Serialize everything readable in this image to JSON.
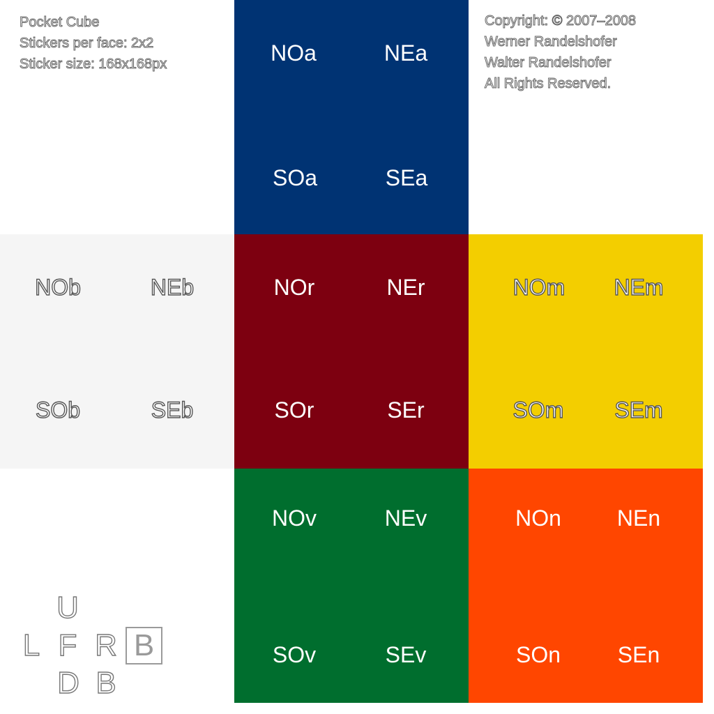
{
  "info": {
    "lines": [
      "Pocket Cube",
      "Stickers per face: 2x2",
      "Sticker size: 168x168px"
    ]
  },
  "copyright": {
    "lines": [
      "Copyright: © 2007–2008",
      "Werner Randelshofer",
      "Walter Randelshofer",
      "All Rights Reserved."
    ]
  },
  "faces": {
    "up": {
      "color": "#003373",
      "stickers": [
        "NOa",
        "NEa",
        "SOa",
        "SEa"
      ]
    },
    "left": {
      "color": "#f5f5f5",
      "stickers": [
        "NOb",
        "NEb",
        "SOb",
        "SEb"
      ]
    },
    "front": {
      "color": "#7d0010",
      "stickers": [
        "NOr",
        "NEr",
        "SOr",
        "SEr"
      ]
    },
    "right": {
      "color": "#f3ce00",
      "stickers": [
        "NOm",
        "NEm",
        "SOm",
        "SEm"
      ]
    },
    "down": {
      "color": "#006e2e",
      "stickers": [
        "NOv",
        "NEv",
        "SOv",
        "SEv"
      ]
    },
    "back": {
      "color": "#ff4600",
      "stickers": [
        "NOn",
        "NEn",
        "SOn",
        "SEn"
      ]
    }
  },
  "legend": {
    "up": "U",
    "left": "L",
    "front": "F",
    "right": "R",
    "back": "B",
    "down": "D",
    "back_below": "B"
  }
}
